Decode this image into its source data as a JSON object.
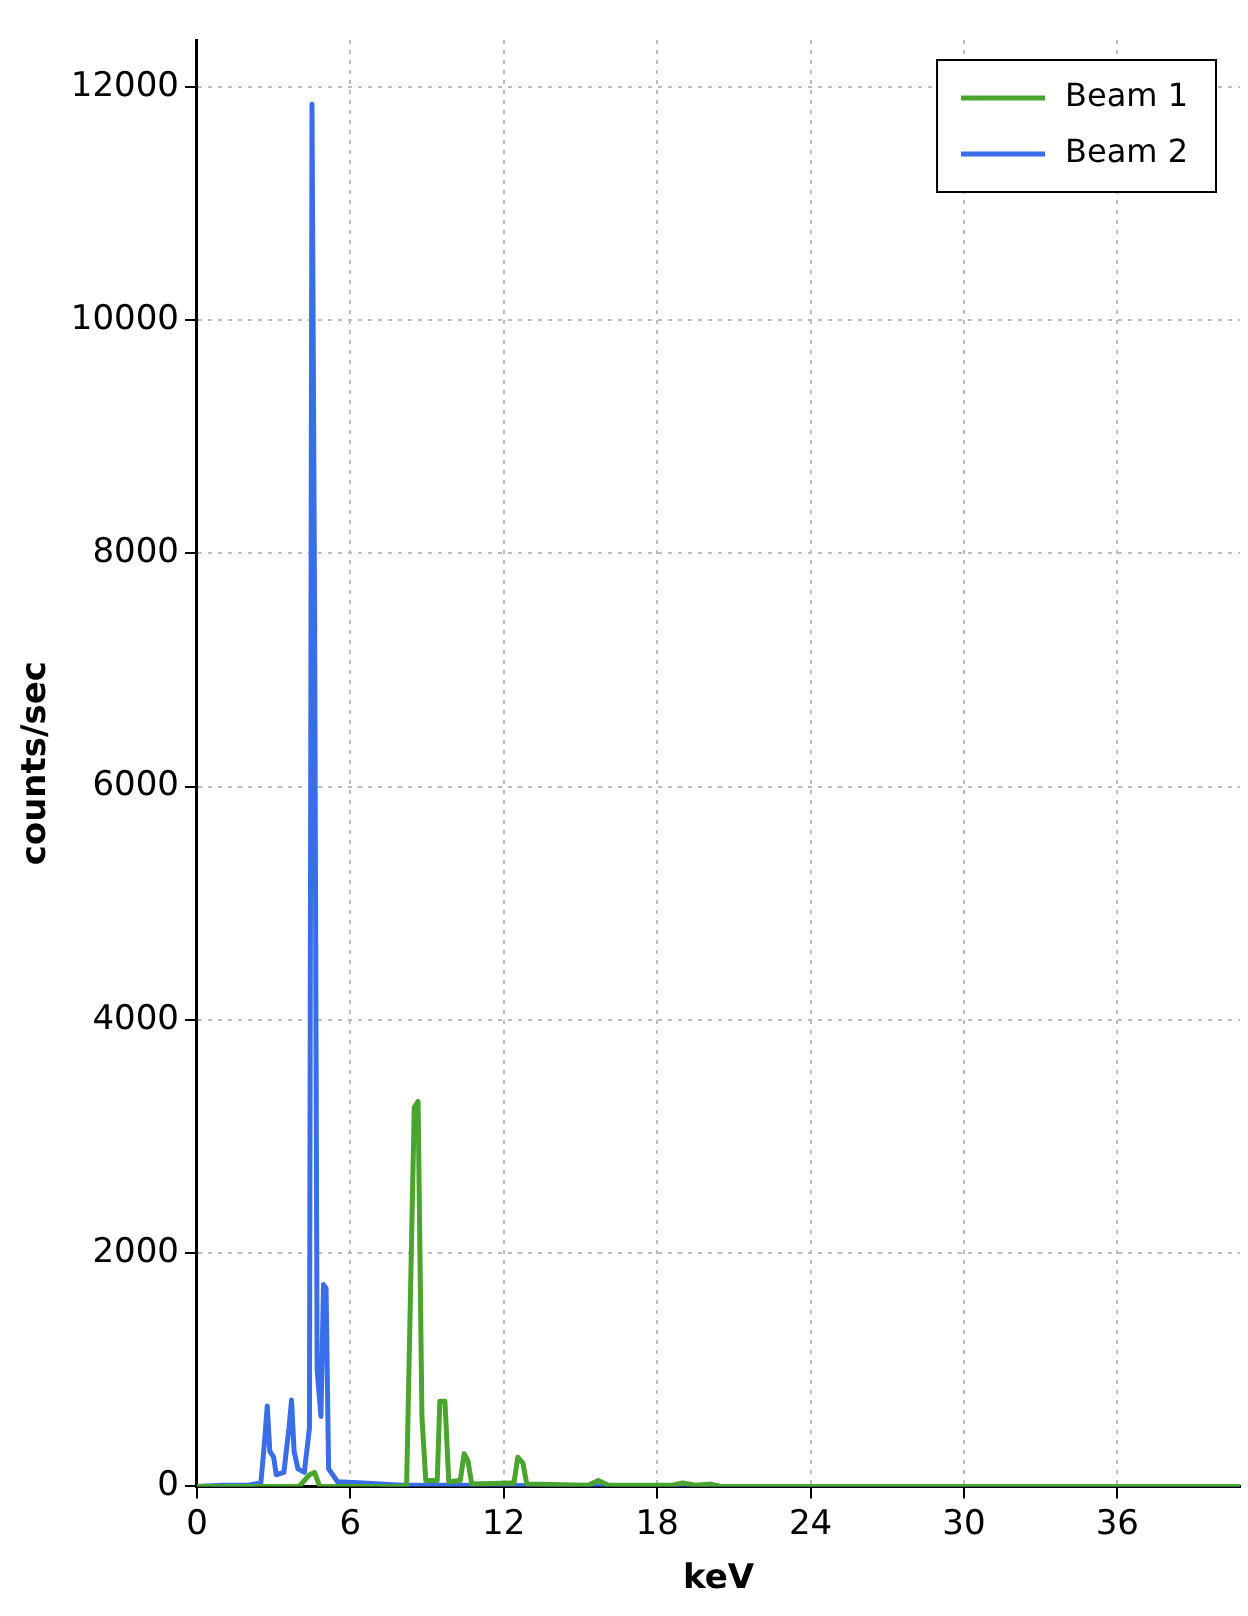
{
  "chart_data": {
    "type": "line",
    "xlabel": "keV",
    "ylabel": "counts/sec",
    "xlim": [
      0,
      40.8
    ],
    "ylim": [
      0,
      12400
    ],
    "xticks": [
      0,
      6,
      12,
      18,
      24,
      30,
      36
    ],
    "yticks": [
      0,
      2000,
      4000,
      6000,
      8000,
      10000,
      12000
    ],
    "grid": true,
    "legend": "top right",
    "marker": "none",
    "line_style": "solid",
    "series": [
      {
        "name": "Beam 1",
        "color": "#4aa52e",
        "x": [
          0,
          4,
          4.4,
          4.6,
          4.8,
          8.2,
          8.5,
          8.65,
          8.8,
          8.95,
          9.4,
          9.5,
          9.7,
          9.85,
          10.3,
          10.45,
          10.6,
          10.75,
          12.4,
          12.55,
          12.75,
          12.9,
          15.3,
          15.7,
          16.1,
          18.6,
          19,
          19.5,
          20.1,
          20.5,
          40.8
        ],
        "values": [
          0,
          0,
          100,
          120,
          0,
          0,
          3250,
          3300,
          600,
          50,
          50,
          730,
          730,
          40,
          50,
          280,
          220,
          20,
          30,
          250,
          200,
          20,
          10,
          50,
          10,
          10,
          30,
          10,
          20,
          0,
          0
        ]
      },
      {
        "name": "Beam 2",
        "color": "#3a6ee8",
        "x": [
          0,
          1,
          2,
          2.5,
          2.65,
          2.75,
          2.85,
          3.0,
          3.1,
          3.4,
          3.6,
          3.7,
          3.8,
          3.95,
          4.2,
          4.4,
          4.5,
          4.6,
          4.7,
          4.85,
          4.95,
          5.05,
          5.15,
          5.5,
          6.5,
          8,
          10,
          20,
          40.8
        ],
        "values": [
          0,
          10,
          10,
          30,
          400,
          690,
          300,
          250,
          100,
          120,
          500,
          740,
          300,
          150,
          120,
          500,
          11850,
          7600,
          1000,
          600,
          1730,
          1700,
          150,
          40,
          30,
          10,
          10,
          0,
          0
        ]
      }
    ]
  }
}
